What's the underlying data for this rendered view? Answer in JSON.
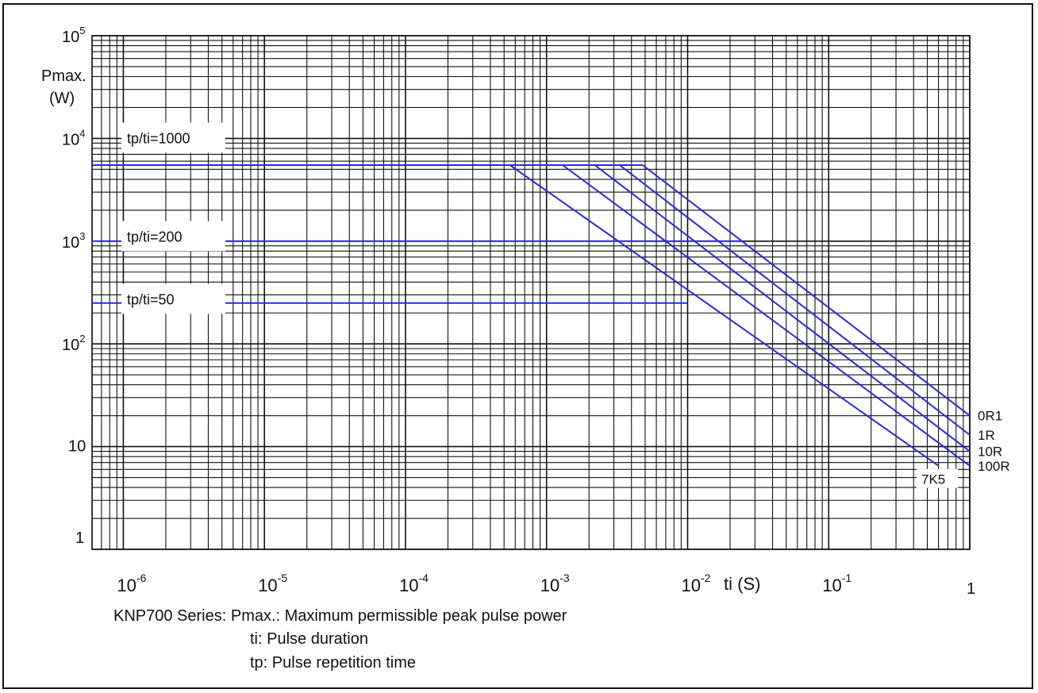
{
  "chart_data": {
    "type": "line",
    "xscale": "log",
    "yscale": "log",
    "xlim": [
      6e-07,
      1
    ],
    "ylim": [
      1,
      100000
    ],
    "xlabel": "ti (S)",
    "ylabel_line1": "Pmax.",
    "ylabel_line2": "(W)",
    "x_ticks": [
      {
        "value": 1e-06,
        "base": "10",
        "exp": "-6"
      },
      {
        "value": 1e-05,
        "base": "10",
        "exp": "-5"
      },
      {
        "value": 0.0001,
        "base": "10",
        "exp": "-4"
      },
      {
        "value": 0.001,
        "base": "10",
        "exp": "-3"
      },
      {
        "value": 0.01,
        "base": "10",
        "exp": "-2"
      },
      {
        "value": 0.1,
        "base": "10",
        "exp": "-1"
      },
      {
        "value": 1,
        "base": "1",
        "exp": ""
      }
    ],
    "y_ticks": [
      {
        "value": 1,
        "base": "1",
        "exp": ""
      },
      {
        "value": 10,
        "base": "10",
        "exp": ""
      },
      {
        "value": 100,
        "base": "10",
        "exp": "2"
      },
      {
        "value": 1000,
        "base": "10",
        "exp": "3"
      },
      {
        "value": 10000,
        "base": "10",
        "exp": "4"
      },
      {
        "value": 100000,
        "base": "10",
        "exp": "5"
      }
    ],
    "grid": true,
    "line_color": "#2b2bd6",
    "ratio_labels": [
      {
        "text": "tp/ti=1000",
        "y": 10000
      },
      {
        "text": "tp/ti=200",
        "y": 1100
      },
      {
        "text": "tp/ti=50",
        "y": 270
      }
    ],
    "series": [
      {
        "name": "tp/ti=1000",
        "x": [
          6e-07,
          0.0048
        ],
        "y": [
          5500,
          5500
        ]
      },
      {
        "name": "tp/ti=200",
        "x": [
          6e-07,
          0.025
        ],
        "y": [
          1000,
          1000
        ]
      },
      {
        "name": "tp/ti=50",
        "x": [
          6e-07,
          0.01
        ],
        "y": [
          250,
          250
        ]
      },
      {
        "name": "0R1",
        "x": [
          0.0048,
          1
        ],
        "y": [
          5500,
          20
        ]
      },
      {
        "name": "1R",
        "x": [
          0.0033,
          1
        ],
        "y": [
          5500,
          13
        ]
      },
      {
        "name": "10R",
        "x": [
          0.0022,
          1
        ],
        "y": [
          5500,
          9
        ]
      },
      {
        "name": "100R",
        "x": [
          0.0013,
          1
        ],
        "y": [
          5500,
          6.5
        ]
      },
      {
        "name": "7K5",
        "x": [
          0.00055,
          0.6
        ],
        "y": [
          5500,
          6.5
        ]
      }
    ],
    "series_labels": [
      {
        "text": "0R1",
        "y": 20
      },
      {
        "text": "1R",
        "y": 13
      },
      {
        "text": "10R",
        "y": 9
      },
      {
        "text": "100R",
        "y": 6.5
      },
      {
        "text": "7K5",
        "y": 4.9
      }
    ]
  },
  "caption": {
    "line1": "KNP700 Series: Pmax.: Maximum permissible peak pulse power",
    "line2": "ti: Pulse duration",
    "line3": "tp: Pulse repetition time"
  }
}
